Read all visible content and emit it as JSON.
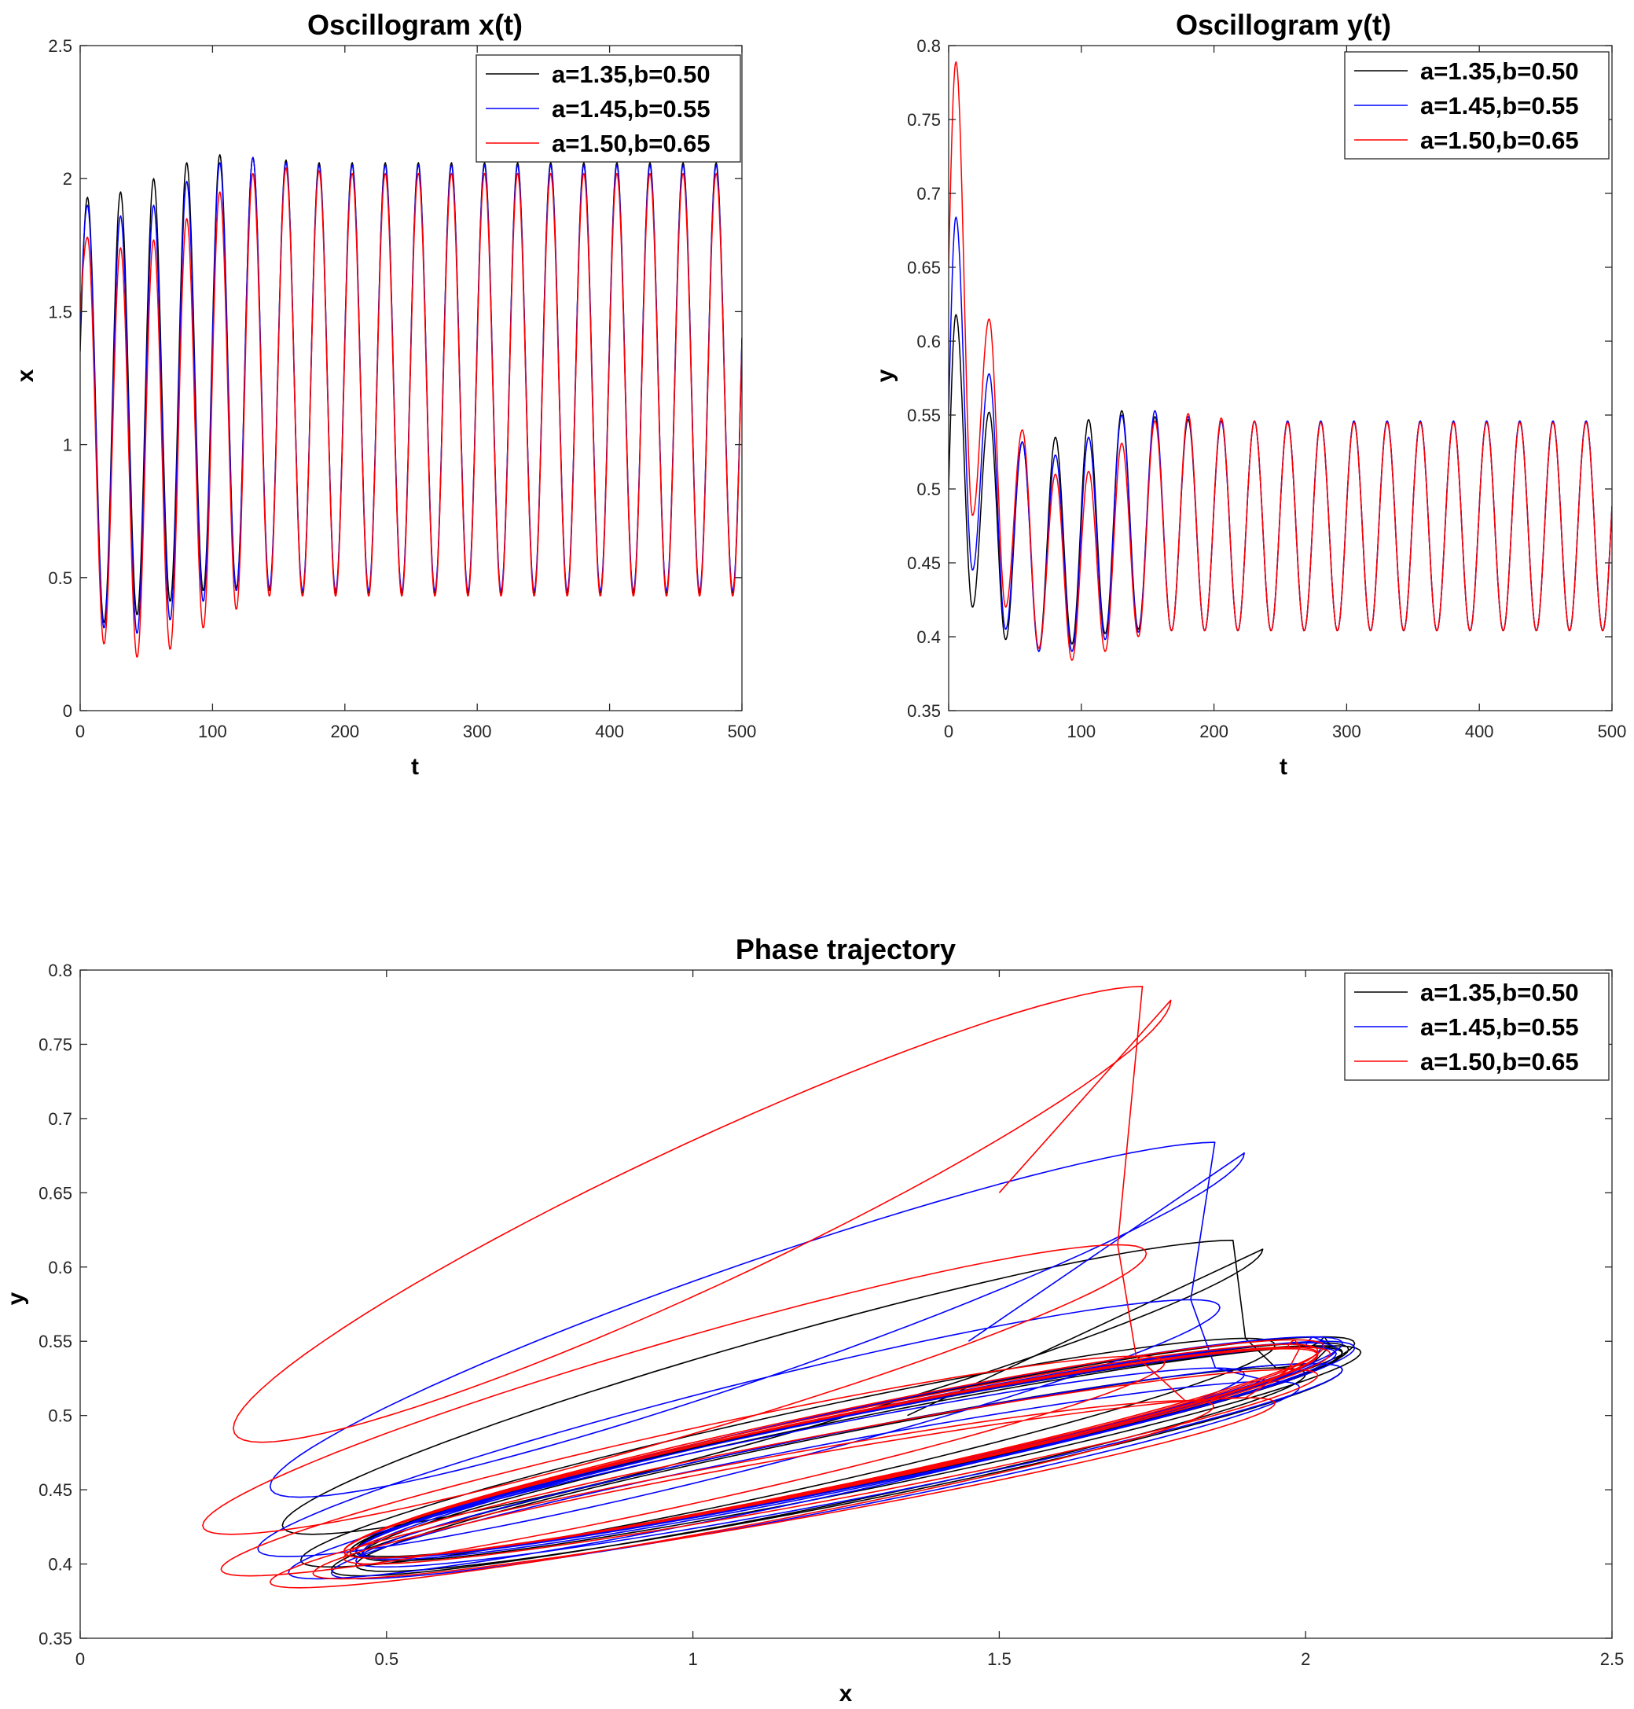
{
  "legend_entries": [
    {
      "label": "a=1.35,b=0.50",
      "color": "#000000"
    },
    {
      "label": "a=1.45,b=0.55",
      "color": "#0000ff"
    },
    {
      "label": "a=1.50,b=0.65",
      "color": "#ff0000"
    }
  ],
  "chart_data": [
    {
      "type": "line",
      "title": "Oscillogram x(t)",
      "xlabel": "t",
      "ylabel": "x",
      "xlim": [
        0,
        500
      ],
      "ylim": [
        0,
        2.5
      ],
      "xticks": [
        0,
        100,
        200,
        300,
        400,
        500
      ],
      "xtick_labels": [
        "0",
        "100",
        "200",
        "300",
        "400",
        "500"
      ],
      "yticks": [
        0,
        0.5,
        1,
        1.5,
        2,
        2.5
      ],
      "ytick_labels": [
        "0",
        "0.5",
        "1",
        "1.5",
        "2",
        "2.5"
      ],
      "legend_position": "top-right",
      "period": 25,
      "series": [
        {
          "name": "a=1.35,b=0.50",
          "color": "#000000",
          "x0": 1.35,
          "peaks": [
            1.93,
            1.95,
            2.0,
            2.06,
            2.09,
            2.08,
            2.07,
            2.06,
            2.06,
            2.06,
            2.06,
            2.06,
            2.06,
            2.06,
            2.06,
            2.06,
            2.06,
            2.06,
            2.06,
            2.06
          ],
          "troughs": [
            0.33,
            0.36,
            0.41,
            0.45,
            0.46,
            0.45,
            0.44,
            0.44,
            0.44,
            0.44,
            0.44,
            0.44,
            0.44,
            0.44,
            0.44,
            0.44,
            0.44,
            0.44,
            0.44,
            0.44
          ]
        },
        {
          "name": "a=1.45,b=0.55",
          "color": "#0000ff",
          "x0": 1.45,
          "peaks": [
            1.9,
            1.86,
            1.9,
            1.99,
            2.06,
            2.08,
            2.06,
            2.05,
            2.05,
            2.05,
            2.05,
            2.05,
            2.05,
            2.05,
            2.05,
            2.05,
            2.05,
            2.05,
            2.05,
            2.05
          ],
          "troughs": [
            0.31,
            0.29,
            0.34,
            0.41,
            0.45,
            0.46,
            0.45,
            0.45,
            0.45,
            0.45,
            0.45,
            0.45,
            0.45,
            0.45,
            0.45,
            0.45,
            0.45,
            0.45,
            0.45,
            0.45
          ]
        },
        {
          "name": "a=1.50,b=0.65",
          "color": "#ff0000",
          "x0": 1.5,
          "peaks": [
            1.78,
            1.74,
            1.77,
            1.85,
            1.95,
            2.02,
            2.04,
            2.03,
            2.02,
            2.02,
            2.02,
            2.02,
            2.02,
            2.02,
            2.02,
            2.02,
            2.02,
            2.02,
            2.02,
            2.02
          ],
          "troughs": [
            0.25,
            0.2,
            0.23,
            0.31,
            0.38,
            0.43,
            0.43,
            0.43,
            0.43,
            0.43,
            0.43,
            0.43,
            0.43,
            0.43,
            0.43,
            0.43,
            0.43,
            0.43,
            0.43,
            0.43
          ]
        }
      ]
    },
    {
      "type": "line",
      "title": "Oscillogram y(t)",
      "xlabel": "t",
      "ylabel": "y",
      "xlim": [
        0,
        500
      ],
      "ylim": [
        0.35,
        0.8
      ],
      "xticks": [
        0,
        100,
        200,
        300,
        400,
        500
      ],
      "xtick_labels": [
        "0",
        "100",
        "200",
        "300",
        "400",
        "500"
      ],
      "yticks": [
        0.35,
        0.4,
        0.45,
        0.5,
        0.55,
        0.6,
        0.65,
        0.7,
        0.75,
        0.8
      ],
      "ytick_labels": [
        "0.35",
        "0.4",
        "0.45",
        "0.5",
        "0.55",
        "0.6",
        "0.65",
        "0.7",
        "0.75",
        "0.8"
      ],
      "legend_position": "top-right",
      "period": 25,
      "series": [
        {
          "name": "a=1.35,b=0.50",
          "color": "#000000",
          "y0": 0.5,
          "peaks": [
            0.618,
            0.552,
            0.532,
            0.535,
            0.547,
            0.553,
            0.549,
            0.547,
            0.546,
            0.546,
            0.546,
            0.546,
            0.546,
            0.546,
            0.546,
            0.546,
            0.546,
            0.546,
            0.546,
            0.546
          ],
          "troughs": [
            0.42,
            0.398,
            0.392,
            0.395,
            0.402,
            0.405,
            0.404,
            0.404,
            0.404,
            0.404,
            0.404,
            0.404,
            0.404,
            0.404,
            0.404,
            0.404,
            0.404,
            0.404,
            0.404,
            0.404
          ]
        },
        {
          "name": "a=1.45,b=0.55",
          "color": "#0000ff",
          "y0": 0.55,
          "peaks": [
            0.684,
            0.578,
            0.532,
            0.523,
            0.535,
            0.55,
            0.553,
            0.549,
            0.546,
            0.546,
            0.546,
            0.546,
            0.546,
            0.546,
            0.546,
            0.546,
            0.546,
            0.546,
            0.546,
            0.546
          ],
          "troughs": [
            0.445,
            0.405,
            0.39,
            0.39,
            0.398,
            0.403,
            0.404,
            0.404,
            0.404,
            0.404,
            0.404,
            0.404,
            0.404,
            0.404,
            0.404,
            0.404,
            0.404,
            0.404,
            0.404,
            0.404
          ]
        },
        {
          "name": "a=1.50,b=0.65",
          "color": "#ff0000",
          "y0": 0.65,
          "peaks": [
            0.789,
            0.615,
            0.54,
            0.51,
            0.512,
            0.531,
            0.546,
            0.551,
            0.548,
            0.546,
            0.545,
            0.545,
            0.545,
            0.545,
            0.545,
            0.545,
            0.545,
            0.545,
            0.545,
            0.545
          ],
          "troughs": [
            0.482,
            0.42,
            0.392,
            0.384,
            0.39,
            0.4,
            0.404,
            0.404,
            0.404,
            0.404,
            0.404,
            0.404,
            0.404,
            0.404,
            0.404,
            0.404,
            0.404,
            0.404,
            0.404,
            0.404
          ]
        }
      ]
    },
    {
      "type": "line",
      "title": "Phase trajectory",
      "xlabel": "x",
      "ylabel": "y",
      "xlim": [
        0,
        2.5
      ],
      "ylim": [
        0.35,
        0.8
      ],
      "xticks": [
        0,
        0.5,
        1,
        1.5,
        2,
        2.5
      ],
      "xtick_labels": [
        "0",
        "0.5",
        "1",
        "1.5",
        "2",
        "2.5"
      ],
      "yticks": [
        0.35,
        0.4,
        0.45,
        0.5,
        0.55,
        0.6,
        0.65,
        0.7,
        0.75,
        0.8
      ],
      "ytick_labels": [
        "0.35",
        "0.4",
        "0.45",
        "0.5",
        "0.55",
        "0.6",
        "0.65",
        "0.7",
        "0.75",
        "0.8"
      ],
      "legend_position": "top-right",
      "series": [
        {
          "name": "a=1.35,b=0.50",
          "color": "#000000",
          "x0": 1.35,
          "y0": 0.5,
          "x_max": [
            1.93,
            1.95,
            2.0,
            2.06,
            2.09,
            2.08,
            2.07,
            2.06,
            2.06,
            2.06,
            2.06,
            2.06,
            2.06
          ],
          "x_min": [
            0.33,
            0.36,
            0.41,
            0.45,
            0.46,
            0.45,
            0.44,
            0.44,
            0.44,
            0.44,
            0.44,
            0.44,
            0.44
          ],
          "y_max": [
            0.618,
            0.552,
            0.532,
            0.535,
            0.547,
            0.553,
            0.549,
            0.547,
            0.546,
            0.546,
            0.546,
            0.546,
            0.546
          ],
          "y_min": [
            0.42,
            0.398,
            0.392,
            0.395,
            0.402,
            0.405,
            0.404,
            0.404,
            0.404,
            0.404,
            0.404,
            0.404,
            0.404
          ]
        },
        {
          "name": "a=1.45,b=0.55",
          "color": "#0000ff",
          "x0": 1.45,
          "y0": 0.55,
          "x_max": [
            1.9,
            1.86,
            1.9,
            1.99,
            2.06,
            2.08,
            2.06,
            2.05,
            2.05,
            2.05,
            2.05,
            2.05,
            2.05
          ],
          "x_min": [
            0.31,
            0.29,
            0.34,
            0.41,
            0.45,
            0.46,
            0.45,
            0.45,
            0.45,
            0.45,
            0.45,
            0.45,
            0.45
          ],
          "y_max": [
            0.684,
            0.578,
            0.532,
            0.523,
            0.535,
            0.55,
            0.553,
            0.549,
            0.546,
            0.546,
            0.546,
            0.546,
            0.546
          ],
          "y_min": [
            0.445,
            0.405,
            0.39,
            0.39,
            0.398,
            0.403,
            0.404,
            0.404,
            0.404,
            0.404,
            0.404,
            0.404,
            0.404
          ]
        },
        {
          "name": "a=1.50,b=0.65",
          "color": "#ff0000",
          "x0": 1.5,
          "y0": 0.65,
          "x_max": [
            1.78,
            1.74,
            1.77,
            1.85,
            1.95,
            2.02,
            2.04,
            2.03,
            2.02,
            2.02,
            2.02,
            2.02,
            2.02
          ],
          "x_min": [
            0.25,
            0.2,
            0.23,
            0.31,
            0.38,
            0.43,
            0.43,
            0.43,
            0.43,
            0.43,
            0.43,
            0.43,
            0.43
          ],
          "y_max": [
            0.789,
            0.615,
            0.54,
            0.51,
            0.512,
            0.531,
            0.546,
            0.551,
            0.548,
            0.546,
            0.545,
            0.545,
            0.545
          ],
          "y_min": [
            0.482,
            0.42,
            0.392,
            0.384,
            0.39,
            0.4,
            0.404,
            0.404,
            0.404,
            0.404,
            0.404,
            0.404,
            0.404
          ]
        }
      ]
    }
  ]
}
